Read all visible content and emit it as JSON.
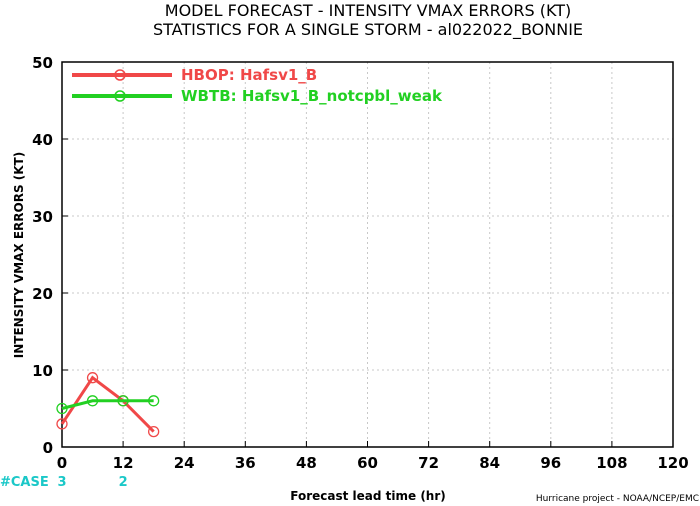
{
  "chart_data": {
    "type": "line",
    "title": "MODEL FORECAST - INTENSITY VMAX ERRORS (KT)",
    "subtitle": "STATISTICS FOR A SINGLE STORM - al022022_BONNIE",
    "xlabel": "Forecast lead time (hr)",
    "ylabel": "INTENSITY VMAX ERRORS (KT)",
    "xlim": [
      0,
      120
    ],
    "ylim": [
      0,
      50
    ],
    "x_ticks": [
      "0",
      "12",
      "24",
      "36",
      "48",
      "60",
      "72",
      "84",
      "96",
      "108",
      "120"
    ],
    "x_tick_values": [
      0,
      12,
      24,
      36,
      48,
      60,
      72,
      84,
      96,
      108,
      120
    ],
    "y_ticks": [
      "0",
      "10",
      "20",
      "30",
      "40",
      "50"
    ],
    "y_tick_values": [
      0,
      10,
      20,
      30,
      40,
      50
    ],
    "grid": true,
    "legend_position": "top-left",
    "series": [
      {
        "name": "HBOP: Hafsv1_B",
        "color": "#f04848",
        "x": [
          0,
          6,
          12,
          18
        ],
        "y": [
          3,
          9,
          6,
          2
        ]
      },
      {
        "name": "WBTB: Hafsv1_B_notcpbl_weak",
        "color": "#22d022",
        "x": [
          0,
          6,
          12,
          18
        ],
        "y": [
          5,
          6,
          6,
          6
        ]
      }
    ],
    "case_label": "#CASE",
    "case_color": "#1bc8c8",
    "cases": [
      {
        "x": 0,
        "label": "3"
      },
      {
        "x": 12,
        "label": "2"
      }
    ],
    "credit": "Hurricane project - NOAA/NCEP/EMC"
  }
}
